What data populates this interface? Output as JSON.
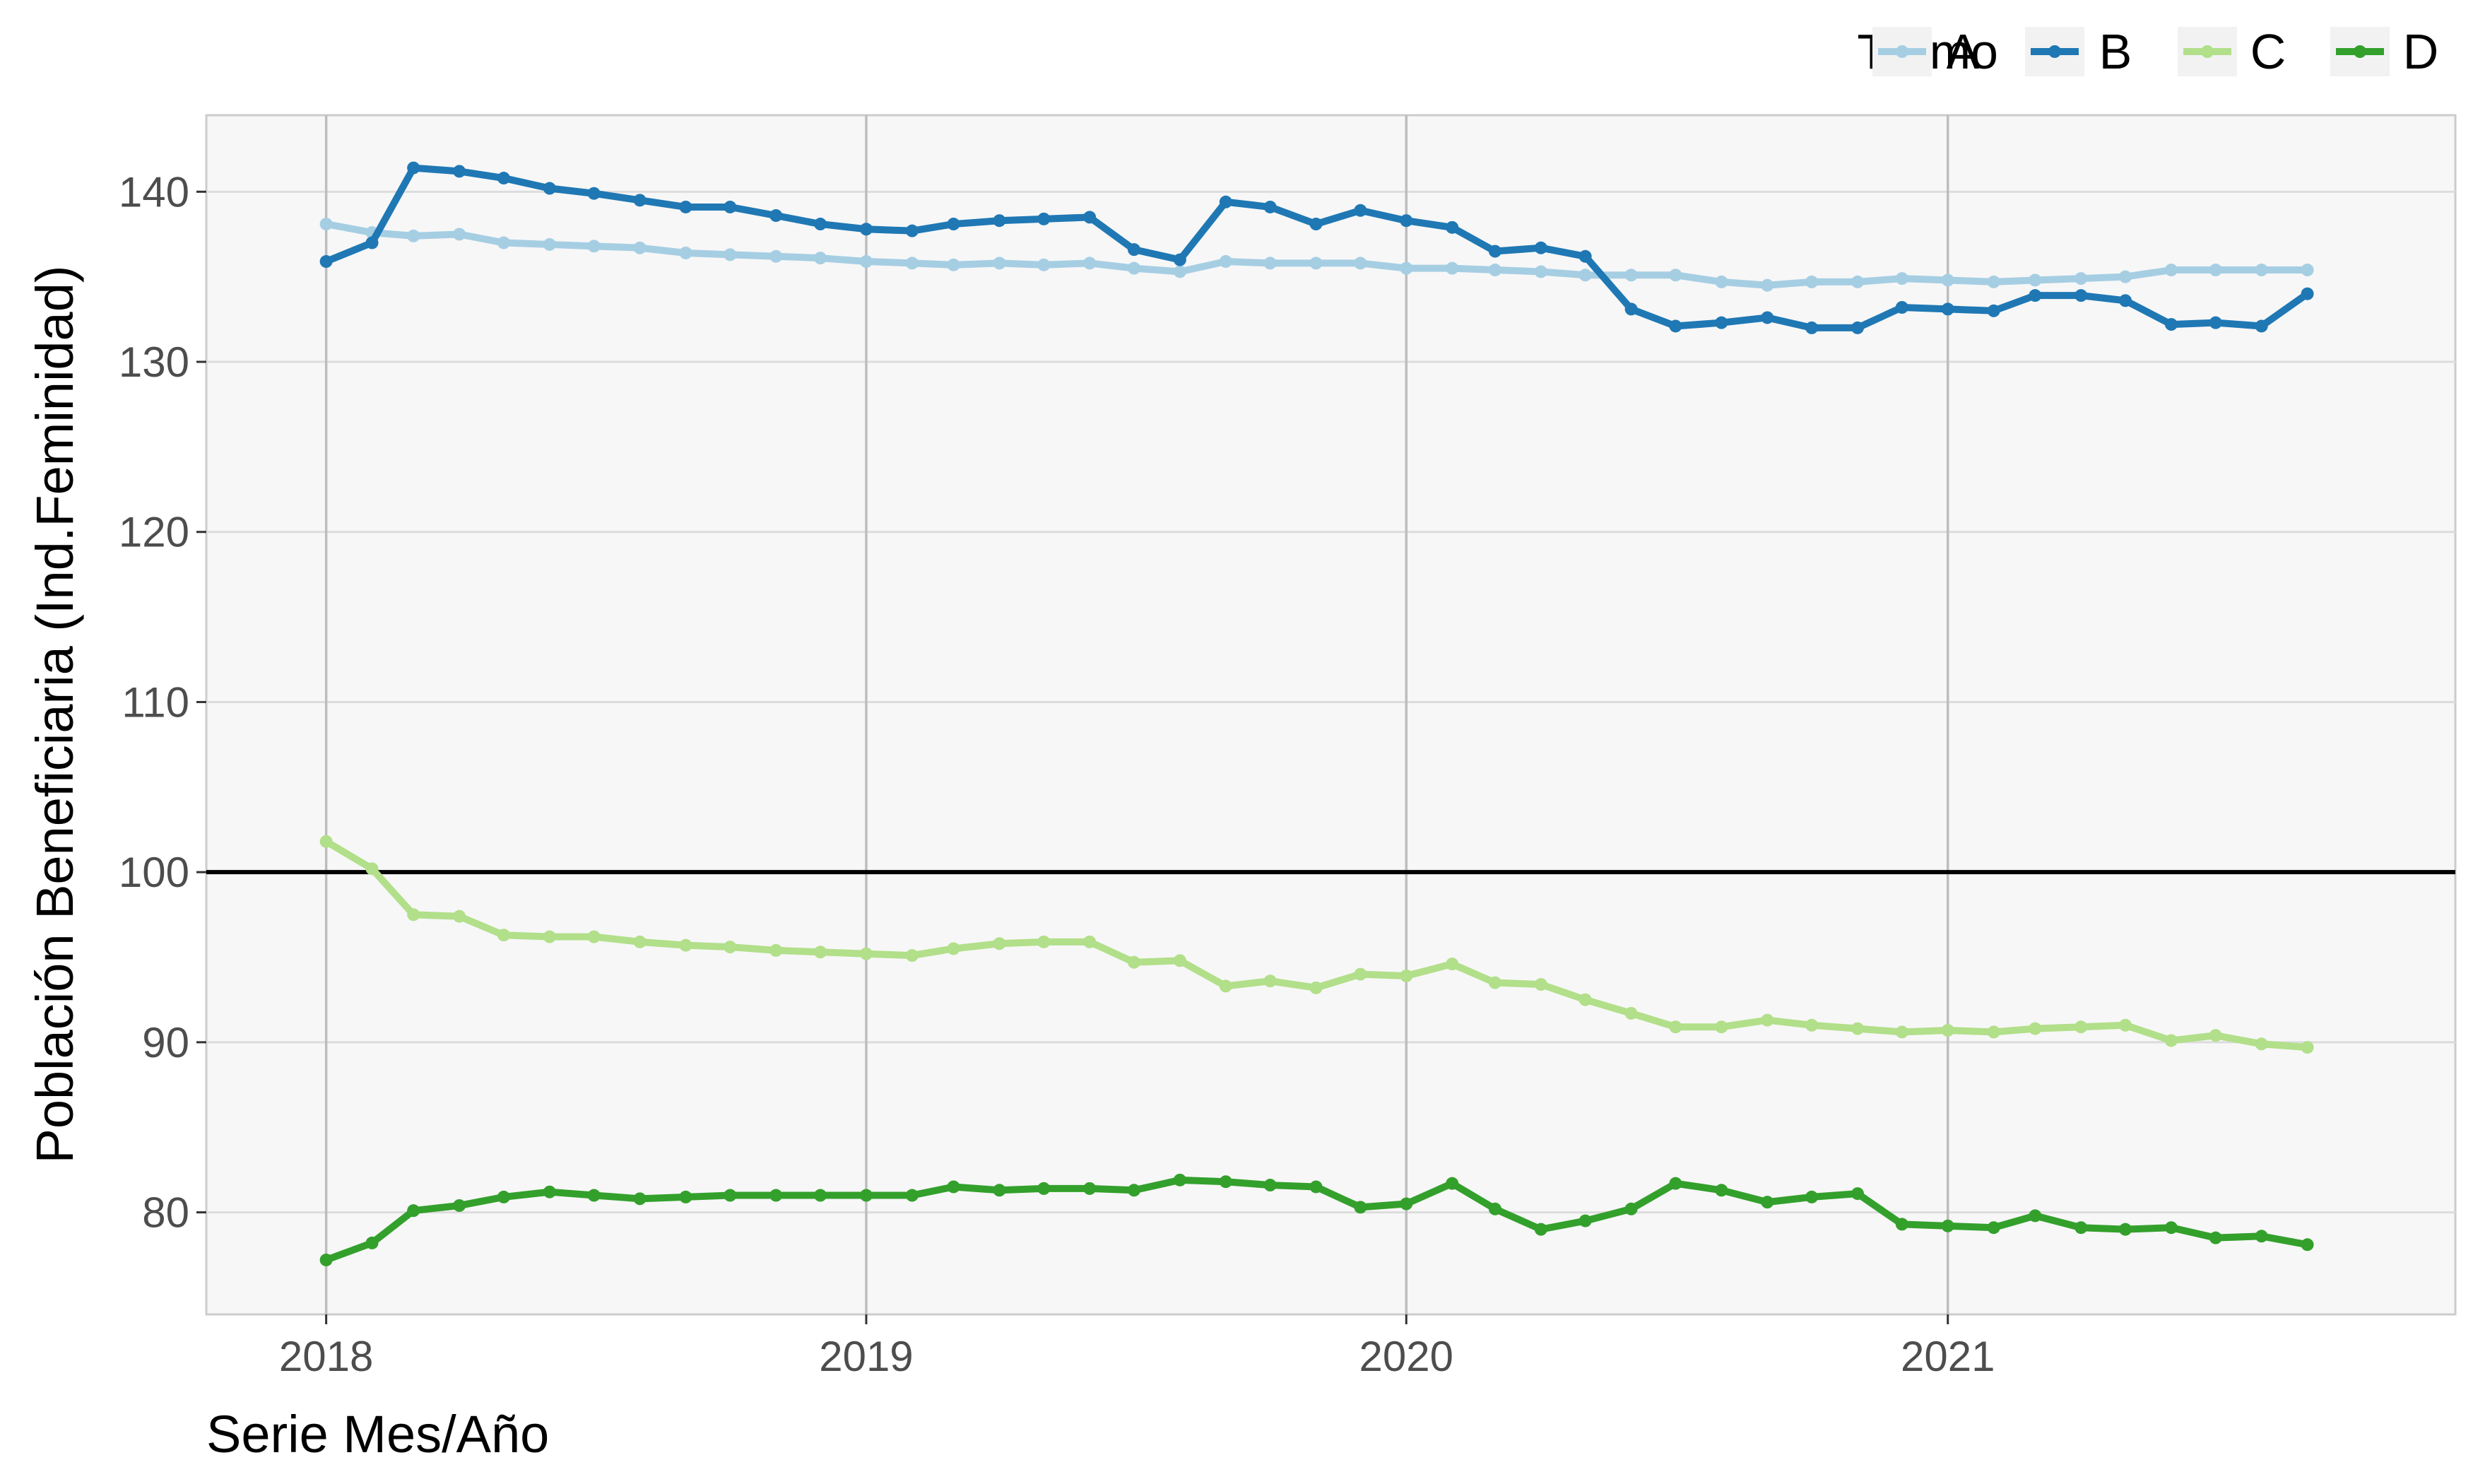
{
  "chart_data": {
    "type": "line",
    "xlabel": "Serie Mes/Año",
    "ylabel": "Población Beneficiaria (Ind.Feminidad)",
    "legend_title": "Tramo",
    "legend_position": "top-right",
    "grid": true,
    "xlim": [
      "2017-10-12",
      "2021-12-10"
    ],
    "ylim": [
      74,
      144.5
    ],
    "x_ticks": [
      {
        "value": "2018-01-01",
        "label": "2018"
      },
      {
        "value": "2019-01-01",
        "label": "2019"
      },
      {
        "value": "2020-01-01",
        "label": "2020"
      },
      {
        "value": "2021-01-01",
        "label": "2021"
      }
    ],
    "y_ticks": [
      80,
      90,
      100,
      110,
      120,
      130,
      140
    ],
    "reference_line": {
      "y": 100,
      "color": "#000000"
    },
    "x": [
      "2018-01",
      "2018-02",
      "2018-03",
      "2018-04",
      "2018-05",
      "2018-06",
      "2018-07",
      "2018-08",
      "2018-09",
      "2018-10",
      "2018-11",
      "2018-12",
      "2019-01",
      "2019-02",
      "2019-03",
      "2019-04",
      "2019-05",
      "2019-06",
      "2019-07",
      "2019-08",
      "2019-09",
      "2019-10",
      "2019-11",
      "2019-12",
      "2020-01",
      "2020-02",
      "2020-03",
      "2020-04",
      "2020-05",
      "2020-06",
      "2020-07",
      "2020-08",
      "2020-09",
      "2020-10",
      "2020-11",
      "2020-12",
      "2021-01",
      "2021-02",
      "2021-03",
      "2021-04",
      "2021-05",
      "2021-06",
      "2021-07",
      "2021-08",
      "2021-09"
    ],
    "series": [
      {
        "name": "A",
        "color": "#a6cee3",
        "values": [
          138.1,
          137.6,
          137.4,
          137.5,
          137.0,
          136.9,
          136.8,
          136.7,
          136.4,
          136.3,
          136.2,
          136.1,
          135.9,
          135.8,
          135.7,
          135.8,
          135.7,
          135.8,
          135.5,
          135.3,
          135.9,
          135.8,
          135.8,
          135.8,
          135.5,
          135.5,
          135.4,
          135.3,
          135.1,
          135.1,
          135.1,
          134.7,
          134.5,
          134.7,
          134.7,
          134.9,
          134.8,
          134.7,
          134.8,
          134.9,
          135.0,
          135.4,
          135.4,
          135.4,
          135.4
        ]
      },
      {
        "name": "B",
        "color": "#1f78b4",
        "values": [
          135.9,
          137.0,
          141.4,
          141.2,
          140.8,
          140.2,
          139.9,
          139.5,
          139.1,
          139.1,
          138.6,
          138.1,
          137.8,
          137.7,
          138.1,
          138.3,
          138.4,
          138.5,
          136.6,
          136.0,
          139.4,
          139.1,
          138.1,
          138.9,
          138.3,
          137.9,
          136.5,
          136.7,
          136.2,
          133.1,
          132.1,
          132.3,
          132.6,
          132.0,
          132.0,
          133.2,
          133.1,
          133.0,
          133.9,
          133.9,
          133.6,
          132.2,
          132.3,
          132.1,
          134.0
        ]
      },
      {
        "name": "C",
        "color": "#b2df8a",
        "values": [
          101.8,
          100.2,
          97.5,
          97.4,
          96.3,
          96.2,
          96.2,
          95.9,
          95.7,
          95.6,
          95.4,
          95.3,
          95.2,
          95.1,
          95.5,
          95.8,
          95.9,
          95.9,
          94.7,
          94.8,
          93.3,
          93.6,
          93.2,
          94.0,
          93.9,
          94.6,
          93.5,
          93.4,
          92.5,
          91.7,
          90.9,
          90.9,
          91.3,
          91.0,
          90.8,
          90.6,
          90.7,
          90.6,
          90.8,
          90.9,
          91.0,
          90.1,
          90.4,
          89.9,
          89.7
        ]
      },
      {
        "name": "D",
        "color": "#33a02c",
        "values": [
          77.2,
          78.2,
          80.1,
          80.4,
          80.9,
          81.2,
          81.0,
          80.8,
          80.9,
          81.0,
          81.0,
          81.0,
          81.0,
          81.0,
          81.5,
          81.3,
          81.4,
          81.4,
          81.3,
          81.9,
          81.8,
          81.6,
          81.5,
          80.3,
          80.5,
          81.7,
          80.2,
          79.0,
          79.5,
          80.2,
          81.7,
          81.3,
          80.6,
          80.9,
          81.1,
          79.3,
          79.2,
          79.1,
          79.8,
          79.1,
          79.0,
          79.1,
          78.5,
          78.6,
          78.1
        ]
      }
    ]
  }
}
